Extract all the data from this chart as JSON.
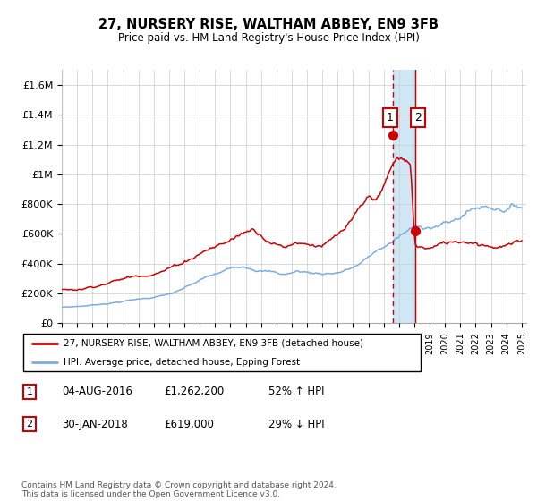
{
  "title": "27, NURSERY RISE, WALTHAM ABBEY, EN9 3FB",
  "subtitle": "Price paid vs. HM Land Registry's House Price Index (HPI)",
  "ylim": [
    0,
    1700000
  ],
  "yticks": [
    0,
    200000,
    400000,
    600000,
    800000,
    1000000,
    1200000,
    1400000,
    1600000
  ],
  "ytick_labels": [
    "£0",
    "£200K",
    "£400K",
    "£600K",
    "£800K",
    "£1M",
    "£1.2M",
    "£1.4M",
    "£1.6M"
  ],
  "xlim_start": 1995,
  "xlim_end": 2025.3,
  "background_color": "#ffffff",
  "grid_color": "#cccccc",
  "sale1_date": 2016.58,
  "sale1_price": 1262200,
  "sale2_date": 2018.08,
  "sale2_price": 619000,
  "legend_label_red": "27, NURSERY RISE, WALTHAM ABBEY, EN9 3FB (detached house)",
  "legend_label_blue": "HPI: Average price, detached house, Epping Forest",
  "transaction1_date_str": "04-AUG-2016",
  "transaction1_price_str": "£1,262,200",
  "transaction1_hpi_str": "52% ↑ HPI",
  "transaction2_date_str": "30-JAN-2018",
  "transaction2_price_str": "£619,000",
  "transaction2_hpi_str": "29% ↓ HPI",
  "footer": "Contains HM Land Registry data © Crown copyright and database right 2024.\nThis data is licensed under the Open Government Licence v3.0.",
  "red_color": "#cc0000",
  "blue_color": "#7aade0",
  "shade_color": "#d0e8f5"
}
